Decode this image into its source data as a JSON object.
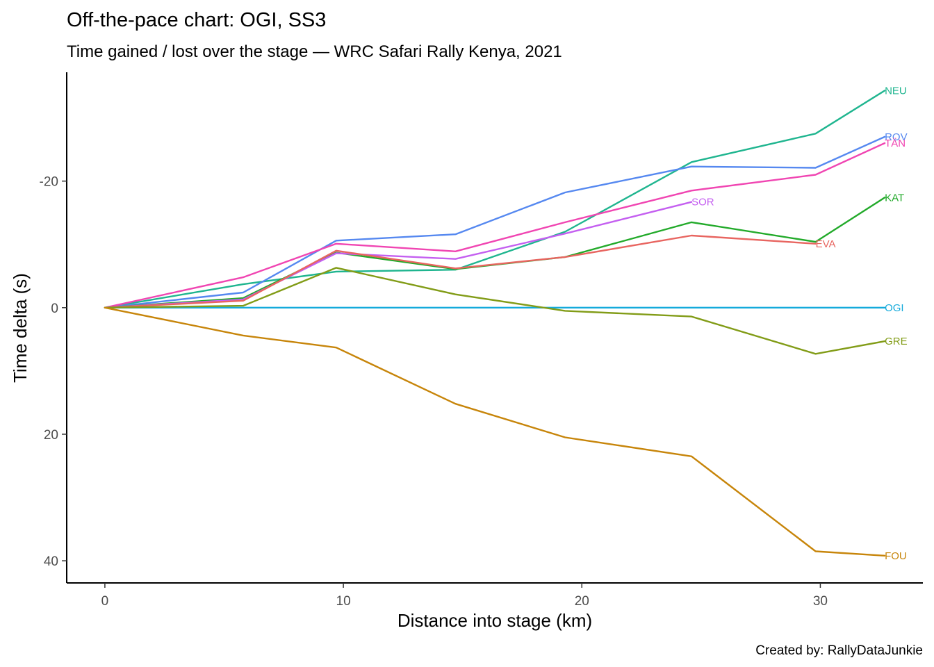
{
  "chart_data": {
    "type": "line",
    "title": "Off-the-pace chart: OGI, SS3",
    "subtitle": "Time gained / lost over the stage — WRC Safari Rally Kenya, 2021",
    "xlabel": "Distance into stage (km)",
    "ylabel": "Time delta (s)",
    "caption": "Created by: RallyDataJunkie",
    "xlim": [
      -1.6,
      34.3
    ],
    "ylim": [
      -37.2,
      43.5
    ],
    "y_reversed": true,
    "x_ticks": [
      0,
      10,
      20,
      30
    ],
    "x_tick_labels": [
      "0",
      "10",
      "20",
      "30"
    ],
    "y_ticks": [
      -20,
      0,
      20,
      40
    ],
    "y_tick_labels": [
      "-20",
      "0",
      "20",
      "40"
    ],
    "grid": false,
    "legend": "none",
    "series": [
      {
        "name": "NEU",
        "color": "#1FB58F",
        "x": [
          0,
          5.8,
          9.7,
          14.7,
          19.3,
          24.6,
          29.8,
          32.7
        ],
        "y": [
          0,
          -3.7,
          -5.7,
          -6.0,
          -12.0,
          -23.0,
          -27.5,
          -34.3
        ]
      },
      {
        "name": "ROV",
        "color": "#5588F0",
        "x": [
          0,
          5.8,
          9.7,
          14.7,
          19.3,
          24.6,
          29.8,
          32.7
        ],
        "y": [
          0,
          -2.4,
          -10.6,
          -11.6,
          -18.2,
          -22.3,
          -22.1,
          -27.0
        ]
      },
      {
        "name": "TÄN",
        "color": "#F045B2",
        "x": [
          0,
          5.8,
          9.7,
          14.7,
          19.3,
          24.6,
          29.8,
          32.7
        ],
        "y": [
          0,
          -4.8,
          -10.1,
          -8.9,
          -13.5,
          -18.5,
          -21.0,
          -26.0
        ]
      },
      {
        "name": "KAT",
        "color": "#22AA2A",
        "x": [
          0,
          5.8,
          9.7,
          14.7,
          19.3,
          24.6,
          29.8,
          32.7
        ],
        "y": [
          0,
          -1.5,
          -8.7,
          -6.1,
          -8.0,
          -13.5,
          -10.4,
          -17.4
        ]
      },
      {
        "name": "SOR",
        "color": "#C45FF0",
        "x": [
          0,
          5.8,
          9.7,
          14.7,
          19.3,
          24.6
        ],
        "y": [
          0,
          -1.3,
          -8.6,
          -7.7,
          -11.7,
          -16.7
        ]
      },
      {
        "name": "EVA",
        "color": "#E86560",
        "x": [
          0,
          5.8,
          9.7,
          14.7,
          19.3,
          24.6,
          29.8
        ],
        "y": [
          0,
          -1.1,
          -9.0,
          -6.2,
          -8.0,
          -11.4,
          -10.1
        ]
      },
      {
        "name": "OGI",
        "color": "#14AADB",
        "x": [
          0,
          32.7
        ],
        "y": [
          0,
          0
        ]
      },
      {
        "name": "GRE",
        "color": "#829C17",
        "x": [
          0,
          5.8,
          9.7,
          14.7,
          19.3,
          24.6,
          29.8,
          32.7
        ],
        "y": [
          0,
          -0.3,
          -6.3,
          -2.1,
          0.5,
          1.4,
          7.3,
          5.3
        ]
      },
      {
        "name": "FOU",
        "color": "#C7850A",
        "x": [
          0,
          5.8,
          9.7,
          14.7,
          19.3,
          24.6,
          29.8,
          32.7
        ],
        "y": [
          0,
          4.4,
          6.3,
          15.2,
          20.5,
          23.5,
          38.5,
          39.2
        ]
      }
    ]
  }
}
